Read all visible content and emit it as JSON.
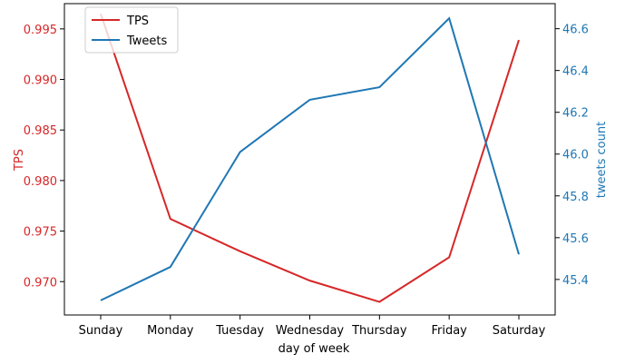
{
  "chart_data": {
    "type": "line",
    "xlabel": "day of week",
    "categories": [
      "Sunday",
      "Monday",
      "Tuesday",
      "Wednesday",
      "Thursday",
      "Friday",
      "Saturday"
    ],
    "series": [
      {
        "name": "TPS",
        "axis": "left",
        "color": "#d62728",
        "values": [
          0.9965,
          0.9762,
          0.973,
          0.9701,
          0.968,
          0.9724,
          0.9939
        ]
      },
      {
        "name": "Tweets",
        "axis": "right",
        "color": "#1f77b4",
        "values": [
          45.3,
          45.46,
          46.01,
          46.26,
          46.32,
          46.65,
          45.52
        ]
      }
    ],
    "y_left": {
      "label": "TPS",
      "color": "#d62728",
      "ylim": [
        0.9667,
        0.9975
      ],
      "ticks": [
        "0.970",
        "0.975",
        "0.980",
        "0.985",
        "0.990",
        "0.995"
      ],
      "tick_values": [
        0.97,
        0.975,
        0.98,
        0.985,
        0.99,
        0.995
      ]
    },
    "y_right": {
      "label": "tweets count",
      "color": "#1f77b4",
      "ylim": [
        45.23,
        46.72
      ],
      "ticks": [
        "45.4",
        "45.6",
        "45.8",
        "46.0",
        "46.2",
        "46.4",
        "46.6"
      ],
      "tick_values": [
        45.4,
        45.6,
        45.8,
        46.0,
        46.2,
        46.4,
        46.6
      ]
    },
    "legend": {
      "position": "upper-left",
      "entries": [
        "TPS",
        "Tweets"
      ]
    },
    "grid": false
  }
}
